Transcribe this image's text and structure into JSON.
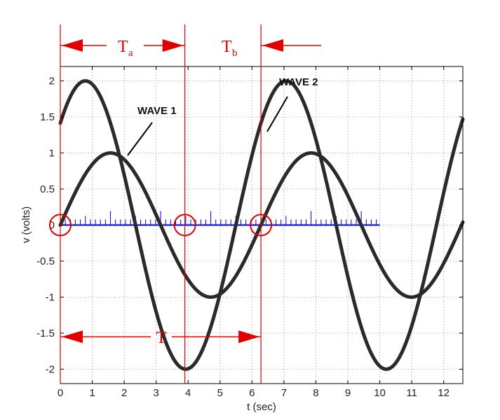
{
  "chart_data": {
    "type": "line",
    "xlabel": "t (sec)",
    "ylabel": "v (volts)",
    "xlim": [
      0,
      12.6
    ],
    "ylim": [
      -2.2,
      2.2
    ],
    "xticks": [
      0,
      1,
      2,
      3,
      4,
      5,
      6,
      7,
      8,
      9,
      10,
      11,
      12
    ],
    "yticks": [
      -2,
      -1.5,
      -1,
      -0.5,
      0,
      0.5,
      1,
      1.5,
      2
    ],
    "grid": true,
    "series": [
      {
        "name": "WAVE 1",
        "function": "sine",
        "amplitude": 1,
        "period": 6.28,
        "start_time": 0,
        "phase_deg": 0,
        "color": "#2a2a2a"
      },
      {
        "name": "WAVE 2",
        "function": "sine",
        "amplitude": 2,
        "period": 6.28,
        "start_time": 0,
        "phase_deg": 45,
        "color": "#2a2a2a"
      }
    ],
    "zero_crossings": [
      0,
      3.9,
      6.28
    ],
    "annotations": {
      "ta_label": "T",
      "ta_sub": "a",
      "tb_label": "T",
      "tb_sub": "b",
      "period_label": "T",
      "wave1_label": "WAVE 1",
      "wave2_label": "WAVE 2"
    },
    "sampling": {
      "x_start": 0,
      "x_end": 10,
      "step": 0.157,
      "color": "#0000cc"
    },
    "annotation_color": "#e00000"
  }
}
